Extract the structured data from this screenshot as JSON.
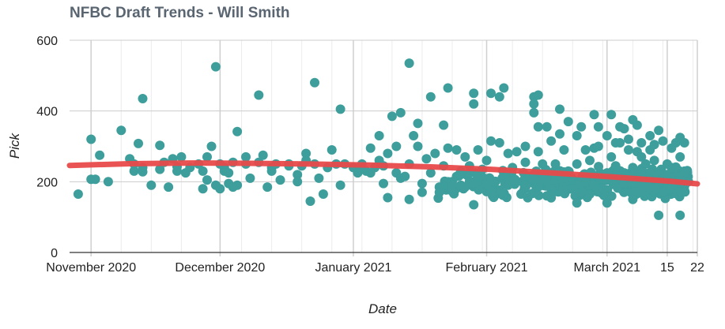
{
  "chart_data": {
    "type": "scatter",
    "title": "NFBC Draft Trends - Will Smith",
    "xlabel": "Date",
    "ylabel": "Pick",
    "ylim": [
      0,
      600
    ],
    "xlim": [
      "2020-10-27",
      "2021-03-22"
    ],
    "y_ticks": [
      0,
      200,
      400,
      600
    ],
    "x_ticks": [
      {
        "date": "2020-11-01",
        "label": "November 2020"
      },
      {
        "date": "2020-12-01",
        "label": "December 2020"
      },
      {
        "date": "2021-01-01",
        "label": "January 2021"
      },
      {
        "date": "2021-02-01",
        "label": "February 2021"
      },
      {
        "date": "2021-03-01",
        "label": "March 2021"
      },
      {
        "date": "2021-03-15",
        "label": "15"
      },
      {
        "date": "2021-03-22",
        "label": "22"
      }
    ],
    "minor_gridlines": [
      "2020-11-08",
      "2020-11-15",
      "2020-11-22",
      "2020-12-06",
      "2020-12-13",
      "2020-12-20",
      "2020-12-27",
      "2021-01-03",
      "2021-01-10",
      "2021-01-17",
      "2021-01-24",
      "2021-01-31",
      "2021-02-07",
      "2021-02-14",
      "2021-02-21",
      "2021-02-28",
      "2021-03-07",
      "2021-03-14",
      "2021-03-21"
    ],
    "grid": true,
    "legend": "none",
    "colors": {
      "points": "#3d9e9c",
      "trend": "#e84a4a",
      "title": "#5a6572"
    },
    "series": [
      {
        "points": [
          [
            "2020-10-29",
            165
          ],
          [
            "2020-11-01",
            320
          ],
          [
            "2020-11-01",
            207
          ],
          [
            "2020-11-02",
            207
          ],
          [
            "2020-11-03",
            275
          ],
          [
            "2020-11-05",
            200
          ],
          [
            "2020-11-08",
            345
          ],
          [
            "2020-11-10",
            265
          ],
          [
            "2020-11-11",
            230
          ],
          [
            "2020-11-11",
            250
          ],
          [
            "2020-11-12",
            308
          ],
          [
            "2020-11-13",
            435
          ],
          [
            "2020-11-13",
            240
          ],
          [
            "2020-11-13",
            228
          ],
          [
            "2020-11-15",
            190
          ],
          [
            "2020-11-17",
            303
          ],
          [
            "2020-11-17",
            235
          ],
          [
            "2020-11-18",
            255
          ],
          [
            "2020-11-19",
            185
          ],
          [
            "2020-11-20",
            265
          ],
          [
            "2020-11-21",
            243
          ],
          [
            "2020-11-21",
            230
          ],
          [
            "2020-11-22",
            270
          ],
          [
            "2020-11-23",
            225
          ],
          [
            "2020-11-24",
            240
          ],
          [
            "2020-11-26",
            250
          ],
          [
            "2020-11-27",
            230
          ],
          [
            "2020-11-27",
            180
          ],
          [
            "2020-11-28",
            270
          ],
          [
            "2020-11-28",
            205
          ],
          [
            "2020-11-29",
            300
          ],
          [
            "2020-11-30",
            525
          ],
          [
            "2020-11-30",
            190
          ],
          [
            "2020-12-01",
            180
          ],
          [
            "2020-12-01",
            250
          ],
          [
            "2020-12-02",
            230
          ],
          [
            "2020-12-02",
            240
          ],
          [
            "2020-12-03",
            225
          ],
          [
            "2020-12-03",
            195
          ],
          [
            "2020-12-04",
            255
          ],
          [
            "2020-12-04",
            185
          ],
          [
            "2020-12-05",
            342
          ],
          [
            "2020-12-05",
            190
          ],
          [
            "2020-12-07",
            270
          ],
          [
            "2020-12-07",
            250
          ],
          [
            "2020-12-08",
            210
          ],
          [
            "2020-12-10",
            445
          ],
          [
            "2020-12-10",
            255
          ],
          [
            "2020-12-11",
            275
          ],
          [
            "2020-12-12",
            185
          ],
          [
            "2020-12-13",
            240
          ],
          [
            "2020-12-13",
            230
          ],
          [
            "2020-12-14",
            250
          ],
          [
            "2020-12-15",
            205
          ],
          [
            "2020-12-17",
            245
          ],
          [
            "2020-12-17",
            250
          ],
          [
            "2020-12-19",
            220
          ],
          [
            "2020-12-19",
            200
          ],
          [
            "2020-12-20",
            245
          ],
          [
            "2020-12-21",
            280
          ],
          [
            "2020-12-21",
            260
          ],
          [
            "2020-12-22",
            145
          ],
          [
            "2020-12-23",
            480
          ],
          [
            "2020-12-23",
            250
          ],
          [
            "2020-12-24",
            210
          ],
          [
            "2020-12-25",
            165
          ],
          [
            "2020-12-26",
            240
          ],
          [
            "2020-12-27",
            290
          ],
          [
            "2020-12-28",
            250
          ],
          [
            "2020-12-29",
            405
          ],
          [
            "2020-12-29",
            190
          ],
          [
            "2020-12-30",
            250
          ],
          [
            "2021-01-01",
            240
          ],
          [
            "2021-01-02",
            225
          ],
          [
            "2021-01-03",
            235
          ],
          [
            "2021-01-03",
            250
          ],
          [
            "2021-01-04",
            230
          ],
          [
            "2021-01-05",
            295
          ],
          [
            "2021-01-05",
            225
          ],
          [
            "2021-01-06",
            240
          ],
          [
            "2021-01-07",
            330
          ],
          [
            "2021-01-07",
            260
          ],
          [
            "2021-01-08",
            245
          ],
          [
            "2021-01-08",
            195
          ],
          [
            "2021-01-09",
            155
          ],
          [
            "2021-01-09",
            280
          ],
          [
            "2021-01-10",
            385
          ],
          [
            "2021-01-11",
            300
          ],
          [
            "2021-01-11",
            225
          ],
          [
            "2021-01-12",
            395
          ],
          [
            "2021-01-12",
            210
          ],
          [
            "2021-01-13",
            215
          ],
          [
            "2021-01-14",
            535
          ],
          [
            "2021-01-14",
            250
          ],
          [
            "2021-01-14",
            150
          ],
          [
            "2021-01-15",
            330
          ],
          [
            "2021-01-16",
            365
          ],
          [
            "2021-01-16",
            300
          ],
          [
            "2021-01-17",
            195
          ],
          [
            "2021-01-17",
            170
          ],
          [
            "2021-01-18",
            265
          ],
          [
            "2021-01-19",
            440
          ],
          [
            "2021-01-19",
            225
          ],
          [
            "2021-01-20",
            280
          ],
          [
            "2021-01-21",
            185
          ],
          [
            "2021-01-21",
            170
          ],
          [
            "2021-01-22",
            245
          ],
          [
            "2021-01-22",
            360
          ],
          [
            "2021-01-23",
            465
          ],
          [
            "2021-01-23",
            295
          ],
          [
            "2021-01-24",
            200
          ],
          [
            "2021-01-24",
            180
          ],
          [
            "2021-01-25",
            290
          ],
          [
            "2021-01-25",
            215
          ],
          [
            "2021-01-26",
            190
          ],
          [
            "2021-01-26",
            230
          ],
          [
            "2021-01-27",
            270
          ],
          [
            "2021-01-27",
            185
          ],
          [
            "2021-01-28",
            200
          ],
          [
            "2021-01-28",
            245
          ],
          [
            "2021-01-29",
            135
          ],
          [
            "2021-01-29",
            450
          ],
          [
            "2021-01-29",
            420
          ],
          [
            "2021-01-30",
            210
          ],
          [
            "2021-01-30",
            290
          ],
          [
            "2021-01-31",
            235
          ],
          [
            "2021-02-01",
            195
          ],
          [
            "2021-02-01",
            260
          ],
          [
            "2021-02-02",
            450
          ],
          [
            "2021-02-02",
            315
          ],
          [
            "2021-02-03",
            200
          ],
          [
            "2021-02-04",
            440
          ],
          [
            "2021-02-04",
            310
          ],
          [
            "2021-02-05",
            465
          ],
          [
            "2021-02-05",
            220
          ],
          [
            "2021-02-06",
            280
          ],
          [
            "2021-02-06",
            190
          ],
          [
            "2021-02-07",
            240
          ],
          [
            "2021-02-08",
            285
          ],
          [
            "2021-02-08",
            200
          ],
          [
            "2021-02-09",
            165
          ],
          [
            "2021-02-10",
            255
          ],
          [
            "2021-02-10",
            300
          ],
          [
            "2021-02-11",
            215
          ],
          [
            "2021-02-12",
            440
          ],
          [
            "2021-02-12",
            420
          ],
          [
            "2021-02-12",
            395
          ],
          [
            "2021-02-13",
            355
          ],
          [
            "2021-02-13",
            445
          ],
          [
            "2021-02-13",
            285
          ],
          [
            "2021-02-14",
            250
          ],
          [
            "2021-02-15",
            355
          ],
          [
            "2021-02-15",
            200
          ],
          [
            "2021-02-16",
            315
          ],
          [
            "2021-02-16",
            180
          ],
          [
            "2021-02-17",
            250
          ],
          [
            "2021-02-18",
            405
          ],
          [
            "2021-02-18",
            335
          ],
          [
            "2021-02-19",
            290
          ],
          [
            "2021-02-19",
            210
          ],
          [
            "2021-02-20",
            370
          ],
          [
            "2021-02-20",
            230
          ],
          [
            "2021-02-21",
            180
          ],
          [
            "2021-02-22",
            330
          ],
          [
            "2021-02-22",
            250
          ],
          [
            "2021-02-23",
            355
          ],
          [
            "2021-02-23",
            170
          ],
          [
            "2021-02-24",
            200
          ],
          [
            "2021-02-24",
            290
          ],
          [
            "2021-02-25",
            260
          ],
          [
            "2021-02-26",
            390
          ],
          [
            "2021-02-26",
            295
          ],
          [
            "2021-02-27",
            355
          ],
          [
            "2021-02-27",
            300
          ],
          [
            "2021-02-28",
            180
          ],
          [
            "2021-03-01",
            225
          ],
          [
            "2021-03-01",
            330
          ],
          [
            "2021-03-02",
            390
          ],
          [
            "2021-03-02",
            270
          ],
          [
            "2021-03-03",
            310
          ],
          [
            "2021-03-03",
            245
          ],
          [
            "2021-03-04",
            355
          ],
          [
            "2021-03-04",
            310
          ],
          [
            "2021-03-05",
            350
          ],
          [
            "2021-03-05",
            225
          ],
          [
            "2021-03-06",
            290
          ],
          [
            "2021-03-06",
            320
          ],
          [
            "2021-03-07",
            375
          ],
          [
            "2021-03-07",
            240
          ],
          [
            "2021-03-08",
            360
          ],
          [
            "2021-03-08",
            285
          ],
          [
            "2021-03-09",
            270
          ],
          [
            "2021-03-09",
            310
          ],
          [
            "2021-03-10",
            250
          ],
          [
            "2021-03-10",
            195
          ],
          [
            "2021-03-11",
            330
          ],
          [
            "2021-03-11",
            290
          ],
          [
            "2021-03-12",
            305
          ],
          [
            "2021-03-12",
            260
          ],
          [
            "2021-03-13",
            345
          ],
          [
            "2021-03-13",
            200
          ],
          [
            "2021-03-14",
            315
          ],
          [
            "2021-03-14",
            170
          ],
          [
            "2021-03-15",
            250
          ],
          [
            "2021-03-15",
            220
          ],
          [
            "2021-03-16",
            295
          ],
          [
            "2021-03-16",
            240
          ],
          [
            "2021-03-17",
            310
          ],
          [
            "2021-03-17",
            200
          ],
          [
            "2021-03-18",
            270
          ],
          [
            "2021-03-18",
            325
          ],
          [
            "2021-03-19",
            230
          ],
          [
            "2021-03-19",
            310
          ],
          [
            "2021-03-19",
            175
          ],
          [
            "2021-03-13",
            105
          ],
          [
            "2021-03-18",
            105
          ],
          [
            "2021-02-22",
            140
          ],
          [
            "2021-03-01",
            140
          ],
          [
            "2021-02-25",
            165
          ],
          [
            "2021-03-07",
            150
          ],
          [
            "2021-02-15",
            160
          ]
        ],
        "dense_clusters": [
          {
            "x_start": "2021-01-20",
            "x_end": "2021-03-20",
            "y_low": 150,
            "y_high": 245,
            "count": 420
          }
        ]
      }
    ],
    "trend_line": [
      [
        "2020-10-27",
        246
      ],
      [
        "2020-11-10",
        251
      ],
      [
        "2020-11-24",
        253
      ],
      [
        "2020-12-08",
        252
      ],
      [
        "2020-12-22",
        250
      ],
      [
        "2021-01-05",
        247
      ],
      [
        "2021-01-19",
        242
      ],
      [
        "2021-02-02",
        235
      ],
      [
        "2021-02-16",
        225
      ],
      [
        "2021-03-02",
        214
      ],
      [
        "2021-03-16",
        201
      ],
      [
        "2021-03-22",
        194
      ]
    ]
  }
}
